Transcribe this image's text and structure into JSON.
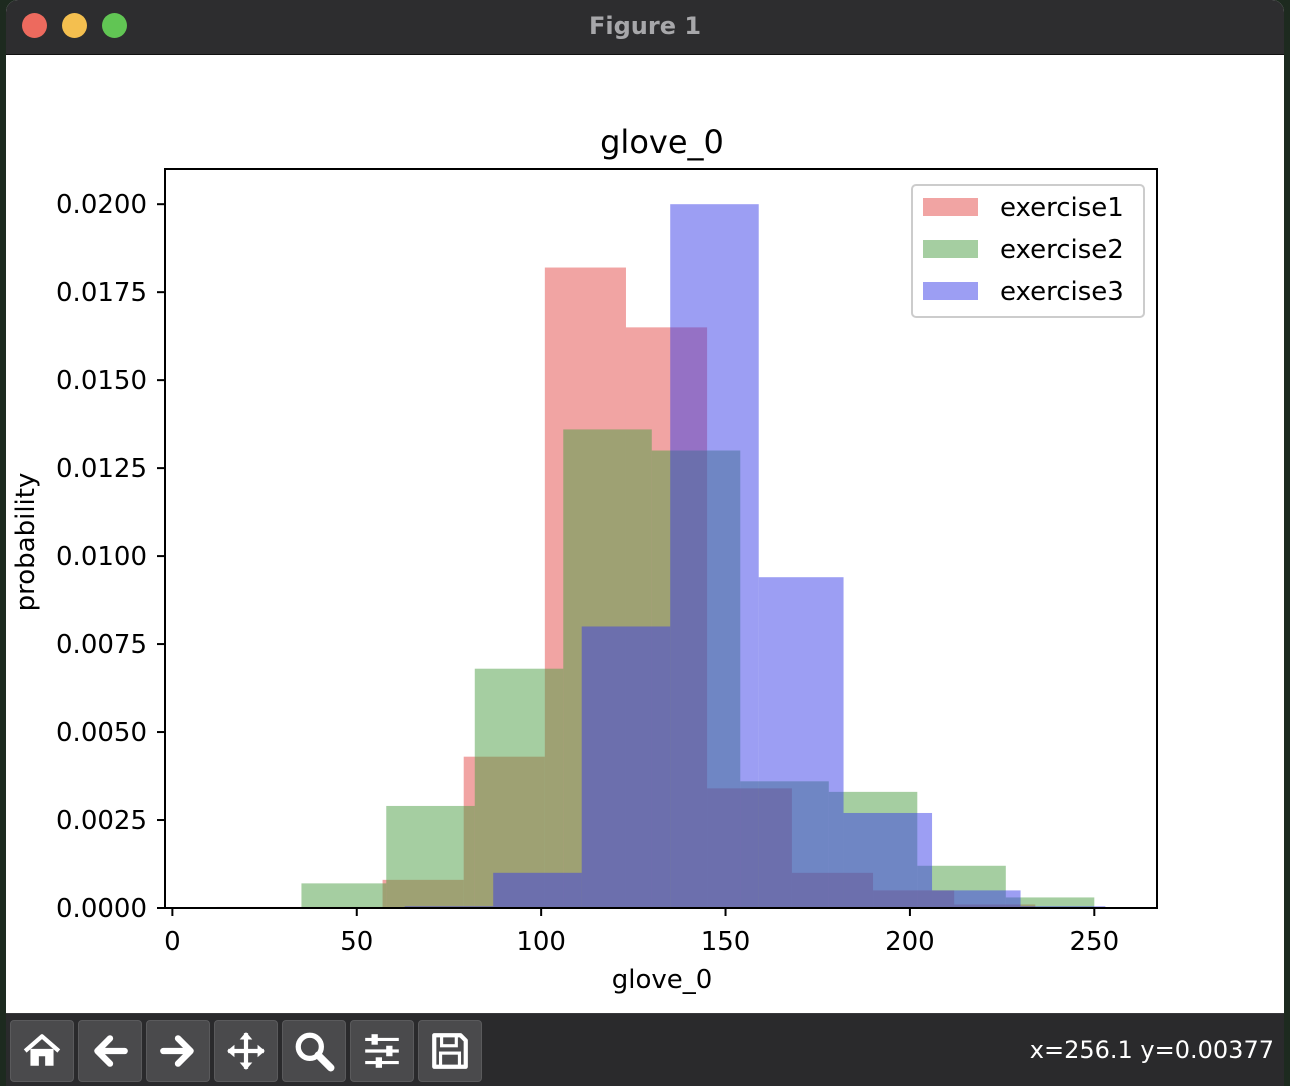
{
  "window": {
    "title": "Figure 1"
  },
  "toolbar": {
    "buttons": [
      {
        "name": "home-icon"
      },
      {
        "name": "back-arrow-icon"
      },
      {
        "name": "forward-arrow-icon"
      },
      {
        "name": "pan-icon"
      },
      {
        "name": "zoom-icon"
      },
      {
        "name": "configure-subplots-icon"
      },
      {
        "name": "save-icon"
      }
    ],
    "coords": "x=256.1 y=0.00377"
  },
  "chart_data": {
    "type": "bar",
    "title": "glove_0",
    "xlabel": "glove_0",
    "ylabel": "probability",
    "xlim": [
      -2,
      267
    ],
    "ylim": [
      0,
      0.021
    ],
    "xticks": [
      0,
      50,
      100,
      150,
      200,
      250
    ],
    "xtick_labels": [
      "0",
      "50",
      "100",
      "150",
      "200",
      "250"
    ],
    "yticks": [
      0,
      0.0025,
      0.005,
      0.0075,
      0.01,
      0.0125,
      0.015,
      0.0175,
      0.02
    ],
    "ytick_labels": [
      "0.0000",
      "0.0025",
      "0.0050",
      "0.0075",
      "0.0100",
      "0.0125",
      "0.0150",
      "0.0175",
      "0.0200"
    ],
    "legend_position": "top-right",
    "series": [
      {
        "name": "exercise1",
        "color": "#e34a47",
        "alpha": 0.5,
        "bins": [
          {
            "x0": 12,
            "x1": 34,
            "y": 3e-05
          },
          {
            "x0": 34,
            "x1": 57,
            "y": 3e-05
          },
          {
            "x0": 57,
            "x1": 79,
            "y": 0.0008
          },
          {
            "x0": 79,
            "x1": 101,
            "y": 0.0043
          },
          {
            "x0": 101,
            "x1": 123,
            "y": 0.0182
          },
          {
            "x0": 123,
            "x1": 145,
            "y": 0.0165
          },
          {
            "x0": 145,
            "x1": 168,
            "y": 0.0034
          },
          {
            "x0": 168,
            "x1": 190,
            "y": 0.001
          },
          {
            "x0": 190,
            "x1": 212,
            "y": 0.0005
          },
          {
            "x0": 212,
            "x1": 234,
            "y": 0.0001
          }
        ]
      },
      {
        "name": "exercise2",
        "color": "#4b9e43",
        "alpha": 0.5,
        "bins": [
          {
            "x0": 35,
            "x1": 58,
            "y": 0.0007
          },
          {
            "x0": 58,
            "x1": 82,
            "y": 0.0029
          },
          {
            "x0": 82,
            "x1": 106,
            "y": 0.0068
          },
          {
            "x0": 106,
            "x1": 130,
            "y": 0.0136
          },
          {
            "x0": 130,
            "x1": 154,
            "y": 0.013
          },
          {
            "x0": 154,
            "x1": 178,
            "y": 0.0036
          },
          {
            "x0": 178,
            "x1": 202,
            "y": 0.0033
          },
          {
            "x0": 202,
            "x1": 226,
            "y": 0.0012
          },
          {
            "x0": 226,
            "x1": 250,
            "y": 0.0003
          }
        ]
      },
      {
        "name": "exercise3",
        "color": "#3a3ee8",
        "alpha": 0.5,
        "bins": [
          {
            "x0": 63,
            "x1": 87,
            "y": 5e-05
          },
          {
            "x0": 87,
            "x1": 111,
            "y": 0.001
          },
          {
            "x0": 111,
            "x1": 135,
            "y": 0.008
          },
          {
            "x0": 135,
            "x1": 159,
            "y": 0.02
          },
          {
            "x0": 159,
            "x1": 182,
            "y": 0.0094
          },
          {
            "x0": 182,
            "x1": 206,
            "y": 0.0027
          },
          {
            "x0": 206,
            "x1": 230,
            "y": 0.0005
          },
          {
            "x0": 230,
            "x1": 253,
            "y": 5e-05
          }
        ]
      }
    ]
  }
}
